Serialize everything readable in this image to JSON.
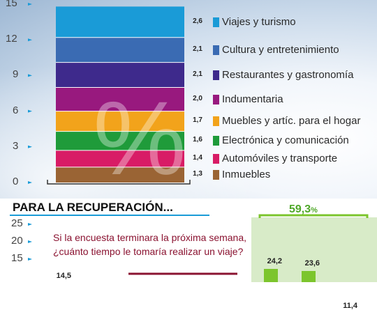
{
  "colors": {
    "travel": "#1a9bd7",
    "culture": "#3a6bb3",
    "restaurants": "#3e2a8c",
    "clothing": "#98197e",
    "furniture": "#f2a31b",
    "electronics": "#1f9b3a",
    "cars": "#d81c66",
    "realestate": "#9a6434",
    "green": "#7cc52d",
    "blue_bar": "#1a9bd7",
    "dark_red": "#8a1230"
  },
  "chart_data": [
    {
      "type": "bar",
      "y_ticks": [
        "15",
        "12",
        "9",
        "6",
        "3",
        "0"
      ],
      "ylim": [
        0,
        15
      ],
      "segments": [
        {
          "name": "Viajes y turismo",
          "value": 2.6,
          "value_label": "2,6",
          "color": "#1a9bd7"
        },
        {
          "name": "Cultura y entretenimiento",
          "value": 2.1,
          "value_label": "2,1",
          "color": "#3a6bb3"
        },
        {
          "name": "Restaurantes y gastronomía",
          "value": 2.1,
          "value_label": "2,1",
          "color": "#3e2a8c"
        },
        {
          "name": "Indumentaria",
          "value": 2.0,
          "value_label": "2,0",
          "color": "#98197e"
        },
        {
          "name": "Muebles y artíc. para el hogar",
          "value": 1.7,
          "value_label": "1,7",
          "color": "#f2a31b"
        },
        {
          "name": "Electrónica y comunicación",
          "value": 1.6,
          "value_label": "1,6",
          "color": "#1f9b3a"
        },
        {
          "name": "Automóviles y transporte",
          "value": 1.4,
          "value_label": "1,4",
          "color": "#d81c66"
        },
        {
          "name": "Inmuebles",
          "value": 1.3,
          "value_label": "1,3",
          "color": "#9a6434"
        }
      ],
      "watermark": "%"
    },
    {
      "type": "bar",
      "title": "PARA LA RECUPERACIÓN...",
      "question_line1": "Si la encuesta terminara la próxima semana,",
      "question_line2": "¿cuánto tiempo le tomaría realizar un viaje?",
      "y_ticks": [
        "25",
        "20",
        "15"
      ],
      "ylim": [
        0,
        30
      ],
      "blue_bar": {
        "value": 14.5,
        "label": "14,5"
      },
      "group_label_main": "59,3",
      "group_label_unit": "%",
      "green_bars": [
        {
          "value": 24.2,
          "label": "24,2"
        },
        {
          "value": 23.6,
          "label": "23,6"
        },
        {
          "value": 11.4,
          "label": "11,4"
        }
      ]
    }
  ]
}
